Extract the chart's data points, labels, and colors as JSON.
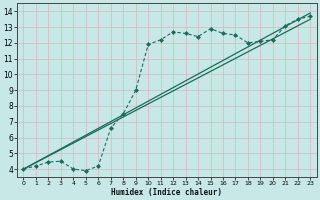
{
  "xlabel": "Humidex (Indice chaleur)",
  "bg_color": "#c8e8e8",
  "grid_color": "#d4b8b8",
  "line_color": "#1a6b5a",
  "xlim": [
    -0.5,
    23.5
  ],
  "ylim": [
    3.5,
    14.5
  ],
  "xticks": [
    0,
    1,
    2,
    3,
    4,
    5,
    6,
    7,
    8,
    9,
    10,
    11,
    12,
    13,
    14,
    15,
    16,
    17,
    18,
    19,
    20,
    21,
    22,
    23
  ],
  "yticks": [
    4,
    5,
    6,
    7,
    8,
    9,
    10,
    11,
    12,
    13,
    14
  ],
  "curve_x": [
    0,
    1,
    2,
    3,
    4,
    5,
    6,
    7,
    8,
    9,
    10,
    11,
    12,
    13,
    14,
    15,
    16,
    17,
    18,
    19,
    20,
    21,
    22,
    23
  ],
  "curve_y": [
    4.0,
    4.2,
    4.45,
    4.5,
    4.0,
    3.9,
    4.2,
    6.6,
    7.5,
    9.0,
    11.9,
    12.2,
    12.7,
    12.6,
    12.4,
    12.9,
    12.6,
    12.5,
    12.0,
    12.1,
    12.2,
    13.1,
    13.5,
    13.7
  ],
  "line1_x": [
    0,
    23
  ],
  "line1_y": [
    4.0,
    13.7
  ],
  "line2_x": [
    0,
    23
  ],
  "line2_y": [
    4.0,
    13.7
  ]
}
